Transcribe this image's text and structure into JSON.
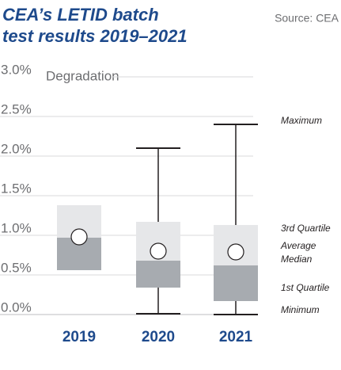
{
  "chart_data": {
    "type": "box",
    "title": "CEA’s LETID batch test results 2019–2021",
    "source": "Source: CEA",
    "y_label": "Degradation",
    "categories": [
      "2019",
      "2020",
      "2021"
    ],
    "min": [
      null,
      0.01,
      0.0
    ],
    "q1": [
      0.56,
      0.34,
      0.17
    ],
    "median": [
      0.97,
      0.68,
      0.62
    ],
    "q3": [
      1.38,
      1.17,
      1.13
    ],
    "max": [
      null,
      2.1,
      2.4
    ],
    "mean": [
      0.98,
      0.8,
      0.79
    ],
    "upper_color": "#e6e7e9",
    "lower_color": "#a7abb0",
    "ylim": [
      0,
      3.0
    ],
    "yticks": [
      {
        "value": 0,
        "label": "0.0%"
      },
      {
        "value": 0.5,
        "label": "0.5%"
      },
      {
        "value": 1.0,
        "label": "1.0%"
      },
      {
        "value": 1.5,
        "label": "1.5%"
      },
      {
        "value": 2.0,
        "label": "2.0%"
      },
      {
        "value": 2.5,
        "label": "2.5%"
      },
      {
        "value": 3.0,
        "label": "3.0%"
      }
    ],
    "grid": true,
    "annotations": [
      "Maximum",
      "3rd Quartile",
      "Average",
      "Median",
      "1st Quartile",
      "Minimum"
    ]
  }
}
